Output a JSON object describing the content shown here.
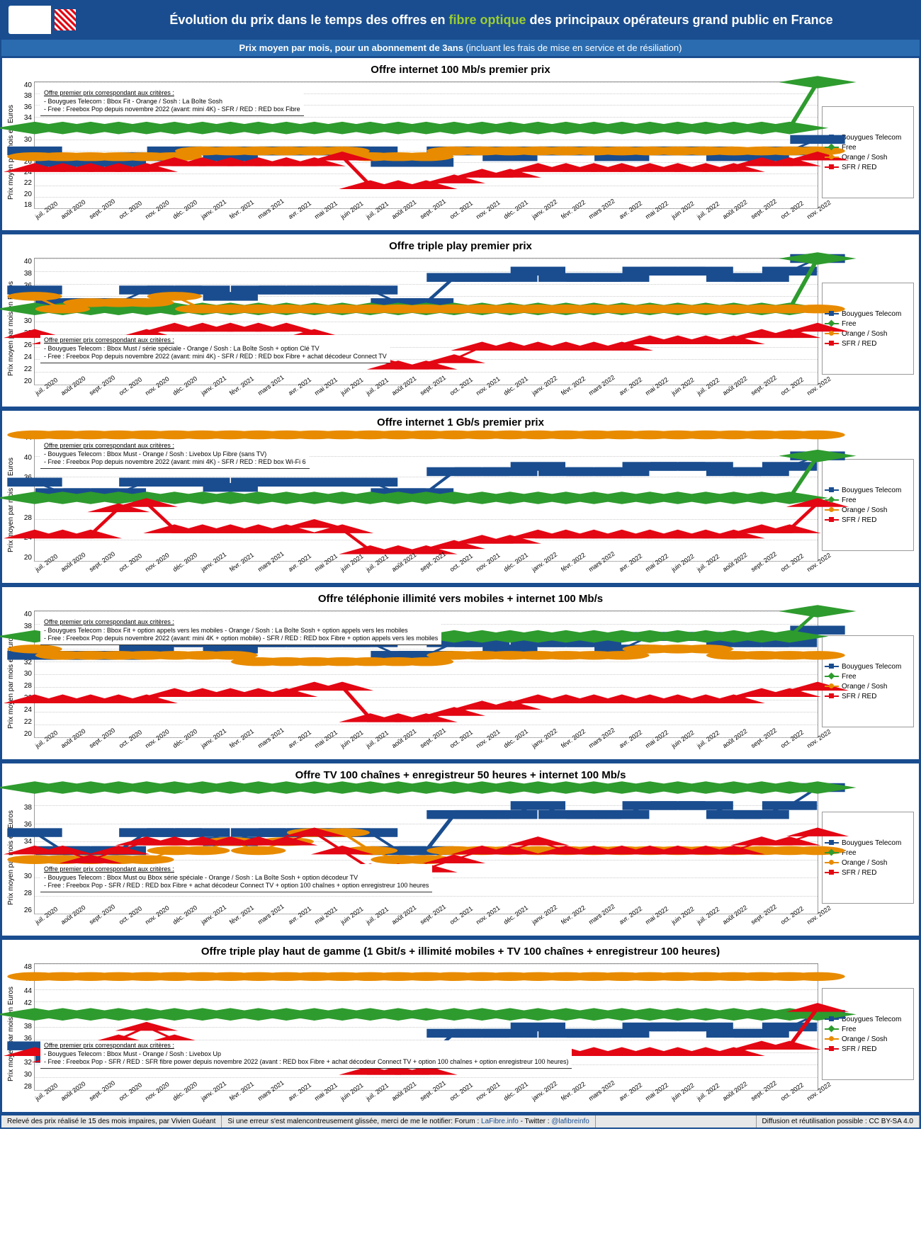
{
  "header": {
    "title_pre": "Évolution du prix dans le temps des offres en ",
    "title_highlight": "fibre optique",
    "title_post": " des principaux opérateurs grand public en France",
    "subtitle_main": "Prix moyen par mois, pour un abonnement de 3ans ",
    "subtitle_paren": "(incluant les frais de mise en service et de résiliation)"
  },
  "x_labels": [
    "juil. 2020",
    "août 2020",
    "sept. 2020",
    "oct. 2020",
    "nov. 2020",
    "déc. 2020",
    "janv. 2021",
    "févr. 2021",
    "mars 2021",
    "avr. 2021",
    "mai 2021",
    "juin 2021",
    "juil. 2021",
    "août 2021",
    "sept. 2021",
    "oct. 2021",
    "nov. 2021",
    "déc. 2021",
    "janv. 2022",
    "févr. 2022",
    "mars 2022",
    "avr. 2022",
    "mai 2022",
    "juin 2022",
    "juil. 2022",
    "août 2022",
    "sept. 2022",
    "oct. 2022",
    "nov. 2022"
  ],
  "y_axis_label": "Prix moyen par mois en Euros",
  "series_meta": [
    {
      "name": "Bouygues Telecom",
      "color": "#1a4d8f",
      "marker": "square"
    },
    {
      "name": "Free",
      "color": "#2e9b2e",
      "marker": "diamond"
    },
    {
      "name": "Orange / Sosh",
      "color": "#e88b00",
      "marker": "circle"
    },
    {
      "name": "SFR / RED",
      "color": "#e30613",
      "marker": "triangle"
    }
  ],
  "charts": [
    {
      "title": "Offre internet 100 Mb/s premier prix",
      "ylim": [
        18,
        40
      ],
      "ytick_step": 2,
      "note": {
        "pos": "top-left",
        "title": "Offre premier prix correspondant aux critères :",
        "lines": [
          "- Bouygues Telecom : Bbox Fit                                                   - Orange / Sosh : La Boîte Sosh",
          "- Free : Freebox Pop depuis novembre 2022 (avant: mini 4K)   - SFR / RED : RED box Fibre"
        ]
      },
      "series": [
        [
          28,
          26,
          26,
          26,
          27,
          28,
          28,
          27,
          28,
          28,
          28,
          28,
          28,
          26,
          26,
          28,
          28,
          27,
          28,
          28,
          28,
          27,
          28,
          28,
          28,
          27,
          27,
          28,
          30
        ],
        [
          32,
          32,
          32,
          32,
          32,
          32,
          32,
          32,
          32,
          32,
          32,
          32,
          32,
          32,
          32,
          32,
          32,
          32,
          32,
          32,
          32,
          32,
          32,
          32,
          32,
          32,
          32,
          32,
          40
        ],
        [
          27,
          27,
          27,
          27,
          27,
          27,
          28,
          28,
          28,
          28,
          28,
          28,
          27,
          27,
          27,
          28,
          28,
          28,
          28,
          28,
          28,
          28,
          28,
          28,
          28,
          28,
          28,
          28,
          28
        ],
        [
          25,
          25,
          25,
          25,
          25,
          26,
          26,
          26,
          26,
          26,
          26,
          27,
          22,
          22,
          22,
          23,
          24,
          24,
          25,
          25,
          25,
          25,
          25,
          25,
          25,
          25,
          26,
          26,
          27
        ]
      ]
    },
    {
      "title": "Offre triple play premier prix",
      "ylim": [
        20,
        40
      ],
      "ytick_step": 2,
      "note": {
        "pos": "bottom-left",
        "title": "Offre premier prix correspondant aux critères :",
        "lines": [
          "- Bouygues Telecom : Bbox Must / série spéciale              - Orange / Sosh : La Boîte Sosh + option Clé TV",
          "- Free : Freebox Pop depuis novembre 2022 (avant: mini 4K)   - SFR / RED : RED box Fibre + achat décodeur Connect TV"
        ]
      },
      "series": [
        [
          35,
          33,
          33,
          33,
          35,
          35,
          35,
          34,
          35,
          35,
          35,
          35,
          35,
          33,
          33,
          37,
          37,
          37,
          38,
          37,
          37,
          37,
          38,
          38,
          38,
          37,
          37,
          38,
          40
        ],
        [
          32,
          32,
          32,
          32,
          32,
          32,
          32,
          32,
          32,
          32,
          32,
          32,
          32,
          32,
          32,
          32,
          32,
          32,
          32,
          32,
          32,
          32,
          32,
          32,
          32,
          32,
          32,
          32,
          40
        ],
        [
          34,
          32,
          33,
          33,
          33,
          34,
          32,
          32,
          32,
          32,
          32,
          32,
          32,
          32,
          32,
          32,
          32,
          32,
          32,
          32,
          32,
          32,
          32,
          32,
          32,
          32,
          32,
          32,
          32
        ],
        [
          28,
          27,
          27,
          27,
          28,
          29,
          29,
          29,
          29,
          29,
          28,
          27,
          24,
          23,
          23,
          24,
          26,
          26,
          26,
          26,
          26,
          26,
          27,
          27,
          27,
          27,
          28,
          28,
          29
        ]
      ]
    },
    {
      "title": "Offre internet 1 Gb/s premier prix",
      "ylim": [
        20,
        44
      ],
      "ytick_step": 4,
      "note": {
        "pos": "top-left",
        "title": "Offre premier prix correspondant aux critères :",
        "lines": [
          "- Bouygues Telecom : Bbox Must                                                 - Orange / Sosh : Livebox Up Fibre (sans TV)",
          "- Free : Freebox Pop depuis novembre 2022 (avant: mini 4K)   - SFR / RED : RED box Wi-Fi 6"
        ]
      },
      "series": [
        [
          35,
          33,
          33,
          33,
          35,
          35,
          35,
          34,
          35,
          35,
          35,
          35,
          35,
          33,
          33,
          37,
          37,
          37,
          38,
          37,
          37,
          37,
          38,
          38,
          38,
          37,
          37,
          38,
          40
        ],
        [
          32,
          32,
          32,
          32,
          32,
          32,
          32,
          32,
          32,
          32,
          32,
          32,
          32,
          32,
          32,
          32,
          32,
          32,
          32,
          32,
          32,
          32,
          32,
          32,
          32,
          32,
          32,
          32,
          40
        ],
        [
          44,
          44,
          44,
          44,
          44,
          44,
          44,
          44,
          44,
          44,
          44,
          44,
          44,
          44,
          44,
          44,
          44,
          44,
          44,
          44,
          44,
          44,
          44,
          44,
          44,
          44,
          44,
          44,
          44
        ],
        [
          25,
          25,
          25,
          30,
          31,
          26,
          26,
          26,
          26,
          26,
          27,
          26,
          22,
          22,
          22,
          23,
          24,
          24,
          25,
          25,
          25,
          25,
          25,
          25,
          25,
          25,
          26,
          26,
          31
        ]
      ]
    },
    {
      "title": "Offre téléphonie illimité vers mobiles + internet 100 Mb/s",
      "ylim": [
        20,
        40
      ],
      "ytick_step": 2,
      "note": {
        "pos": "top-left",
        "title": "Offre premier prix correspondant aux critères :",
        "lines": [
          "- Bouygues Telecom : Bbox Fit + option appels vers les mobiles                        - Orange / Sosh : La Boîte Sosh + option appels vers les mobiles",
          "- Free : Freebox Pop depuis novembre 2022 (avant: mini 4K + option mobile)   - SFR / RED : RED box Fibre + option appels vers les mobiles"
        ]
      },
      "series": [
        [
          33,
          33,
          33,
          33,
          34,
          35,
          35,
          34,
          35,
          35,
          35,
          35,
          35,
          33,
          33,
          35,
          35,
          34,
          35,
          35,
          35,
          34,
          36,
          36,
          36,
          35,
          35,
          35,
          37
        ],
        [
          36,
          36,
          36,
          36,
          36,
          36,
          36,
          36,
          36,
          36,
          36,
          36,
          36,
          36,
          36,
          36,
          36,
          36,
          36,
          36,
          36,
          36,
          36,
          36,
          36,
          36,
          36,
          36,
          40
        ],
        [
          34,
          33,
          33,
          33,
          33,
          33,
          33,
          33,
          32,
          32,
          32,
          32,
          32,
          32,
          32,
          33,
          33,
          33,
          33,
          33,
          33,
          33,
          34,
          34,
          34,
          33,
          33,
          33,
          33
        ],
        [
          26,
          26,
          26,
          26,
          26,
          27,
          27,
          27,
          27,
          27,
          28,
          28,
          23,
          23,
          23,
          24,
          25,
          25,
          26,
          26,
          26,
          26,
          26,
          26,
          26,
          26,
          27,
          27,
          28
        ]
      ]
    },
    {
      "title": "Offre TV 100 chaînes + enregistreur 50 heures + internet 100 Mb/s",
      "ylim": [
        26,
        40
      ],
      "ytick_step": 2,
      "note": {
        "pos": "bottom-left",
        "title": "Offre premier prix correspondant aux critères :",
        "lines": [
          "- Bouygues Telecom : Bbox Must ou Bbox série spéciale   - Orange / Sosh : La Boîte Sosh + option décodeur TV",
          "- Free : Freebox Pop                                                       - SFR / RED : RED box Fibre + achat décodeur Connect TV + option 100 chaînes + option enregistreur 100 heures"
        ]
      },
      "series": [
        [
          35,
          33,
          33,
          33,
          35,
          35,
          35,
          34,
          35,
          35,
          35,
          35,
          35,
          33,
          33,
          37,
          37,
          37,
          38,
          37,
          37,
          37,
          38,
          38,
          38,
          37,
          37,
          38,
          40
        ],
        [
          40,
          40,
          40,
          40,
          40,
          40,
          40,
          40,
          40,
          40,
          40,
          40,
          40,
          40,
          40,
          40,
          40,
          40,
          40,
          40,
          40,
          40,
          40,
          40,
          40,
          40,
          40,
          40,
          40
        ],
        [
          32,
          32,
          32,
          32,
          32,
          33,
          33,
          34,
          33,
          34,
          35,
          35,
          33,
          32,
          32,
          33,
          33,
          33,
          33,
          33,
          33,
          33,
          33,
          33,
          33,
          33,
          33,
          33,
          33
        ],
        [
          33,
          33,
          32,
          33,
          34,
          34,
          34,
          34,
          34,
          34,
          35,
          33,
          31,
          31,
          31,
          32,
          33,
          33,
          34,
          33,
          33,
          33,
          33,
          33,
          33,
          33,
          34,
          34,
          35
        ]
      ]
    },
    {
      "title": "Offre triple play haut de gamme (1 Gbit/s + illimité mobiles + TV 100 chaînes + enregistreur 100 heures)",
      "ylim": [
        28,
        48
      ],
      "ytick_step": 2,
      "note": {
        "pos": "bottom-left",
        "title": "Offre premier prix correspondant aux critères :",
        "lines": [
          "- Bouygues Telecom : Bbox Must   - Orange / Sosh : Livebox Up",
          "- Free : Freebox Pop                      - SFR / RED : SFR fibre power depuis novembre 2022 (avant : RED box Fibre + achat décodeur Connect TV + option 100 chaînes + option enregistreur 100 heures)"
        ]
      },
      "series": [
        [
          35,
          33,
          33,
          33,
          35,
          35,
          35,
          34,
          35,
          35,
          35,
          35,
          35,
          33,
          33,
          37,
          37,
          37,
          38,
          37,
          37,
          37,
          38,
          38,
          38,
          37,
          37,
          38,
          40
        ],
        [
          40,
          40,
          40,
          40,
          40,
          40,
          40,
          40,
          40,
          40,
          40,
          40,
          40,
          40,
          40,
          40,
          40,
          40,
          40,
          40,
          40,
          40,
          40,
          40,
          40,
          40,
          40,
          40,
          40
        ],
        [
          46,
          46,
          46,
          46,
          46,
          46,
          46,
          46,
          46,
          46,
          46,
          46,
          46,
          46,
          46,
          46,
          46,
          46,
          46,
          46,
          46,
          46,
          46,
          46,
          46,
          46,
          46,
          46,
          46
        ],
        [
          34,
          33,
          33,
          36,
          38,
          36,
          35,
          35,
          35,
          35,
          35,
          33,
          31,
          31,
          31,
          32,
          33,
          33,
          34,
          34,
          34,
          34,
          34,
          34,
          34,
          34,
          35,
          35,
          41
        ]
      ]
    }
  ],
  "footer": {
    "left": "Relevé des prix réalisé le 15 des mois impaires, par Vivien Guéant",
    "mid": "Si une erreur s'est malencontreusement glissée, merci de me le notifier: Forum : ",
    "link1": "LaFibre.info",
    "mid2": " - Twitter : ",
    "link2": "@lafibreinfo",
    "right": "Diffusion et réutilisation possible : CC BY-SA 4.0"
  }
}
